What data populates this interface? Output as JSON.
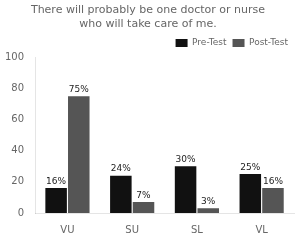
{
  "chart_data": {
    "type": "bar",
    "title": "There will probably be one doctor or nurse\nwho will take care of me.",
    "categories": [
      "VU",
      "SU",
      "SL",
      "VL"
    ],
    "series": [
      {
        "name": "Pre-Test",
        "color": "#111111",
        "values": [
          16,
          24,
          30,
          25
        ],
        "value_labels": [
          "16%",
          "24%",
          "30%",
          "25%"
        ]
      },
      {
        "name": "Post-Test",
        "color": "#555555",
        "values": [
          75,
          7,
          3,
          16
        ],
        "value_labels": [
          "75%",
          "7%",
          "3%",
          "16%"
        ]
      }
    ],
    "ylim": [
      0,
      100
    ],
    "yticks": [
      0,
      20,
      40,
      60,
      80,
      100
    ],
    "grid": false,
    "legend": "upper right",
    "data_labels": true
  }
}
